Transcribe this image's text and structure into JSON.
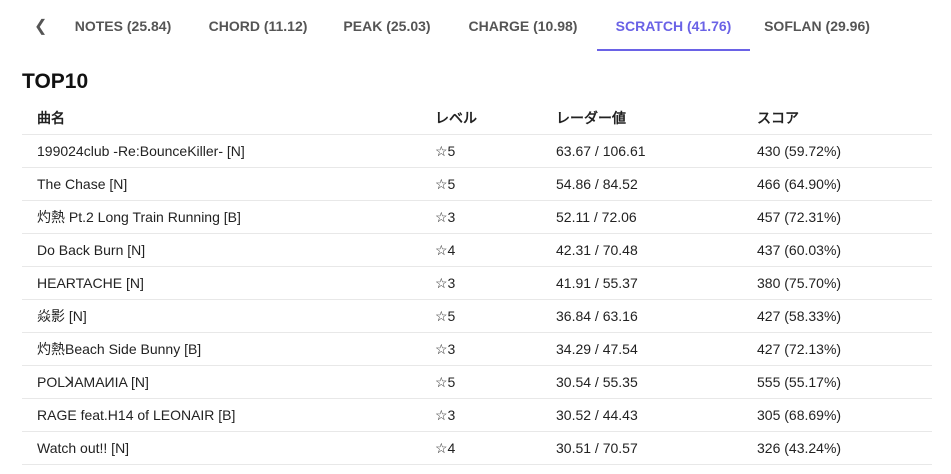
{
  "tabs": {
    "prev_icon": "chevron-left-icon",
    "items": [
      {
        "label": "NOTES (25.84)"
      },
      {
        "label": "CHORD (11.12)"
      },
      {
        "label": "PEAK (25.03)"
      },
      {
        "label": "CHARGE (10.98)"
      },
      {
        "label": "SCRATCH (41.76)",
        "active": true
      },
      {
        "label": "SOFLAN (29.96)"
      }
    ],
    "accent": "#6a62e6"
  },
  "section_title": "TOP10",
  "table": {
    "headers": [
      "曲名",
      "レベル",
      "レーダー値",
      "スコア"
    ],
    "rows": [
      [
        "199024club -Re:BounceKiller- [N]",
        "☆5",
        "63.67 / 106.61",
        "430 (59.72%)"
      ],
      [
        "The Chase [N]",
        "☆5",
        "54.86 / 84.52",
        "466 (64.90%)"
      ],
      [
        "灼熱 Pt.2 Long Train Running [B]",
        "☆3",
        "52.11 / 72.06",
        "457 (72.31%)"
      ],
      [
        "Do Back Burn [N]",
        "☆4",
        "42.31 / 70.48",
        "437 (60.03%)"
      ],
      [
        "HEARTACHE [N]",
        "☆3",
        "41.91 / 55.37",
        "380 (75.70%)"
      ],
      [
        "焱影 [N]",
        "☆5",
        "36.84 / 63.16",
        "427 (58.33%)"
      ],
      [
        "灼熱Beach Side Bunny [B]",
        "☆3",
        "34.29 / 47.54",
        "427 (72.13%)"
      ],
      [
        "POLꓘAMAИIA [N]",
        "☆5",
        "30.54 / 55.35",
        "555 (55.17%)"
      ],
      [
        "RAGE feat.H14 of LEONAIR [B]",
        "☆3",
        "30.52 / 44.43",
        "305 (68.69%)"
      ],
      [
        "Watch out!! [N]",
        "☆4",
        "30.51 / 70.57",
        "326 (43.24%)"
      ]
    ]
  }
}
